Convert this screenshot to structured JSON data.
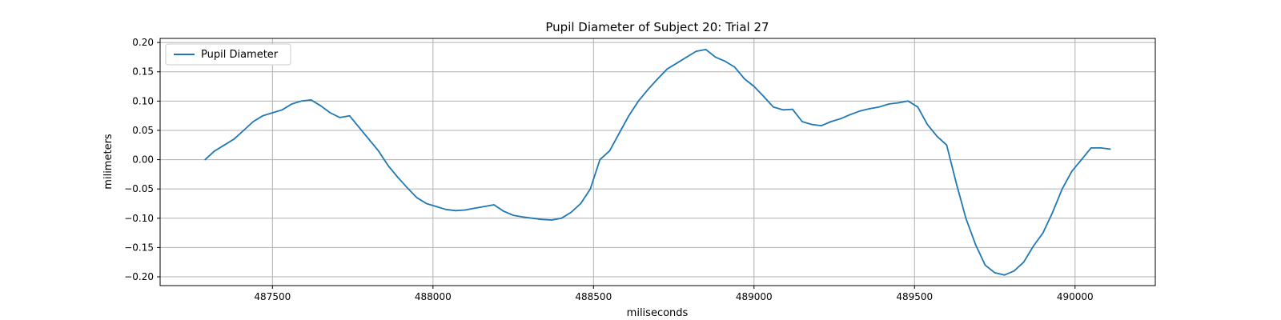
{
  "chart_data": {
    "type": "line",
    "title": "Pupil Diameter of Subject 20: Trial 27",
    "xlabel": "miliseconds",
    "ylabel": "milimeters",
    "xlim": [
      487150,
      490250
    ],
    "ylim": [
      -0.215,
      0.207
    ],
    "x_ticks": [
      487500,
      488000,
      488500,
      489000,
      489500,
      490000
    ],
    "x_tick_labels": [
      "487500",
      "488000",
      "488500",
      "489000",
      "489500",
      "490000"
    ],
    "y_ticks": [
      0.2,
      0.15,
      0.1,
      0.05,
      0.0,
      -0.05,
      -0.1,
      -0.15,
      -0.2
    ],
    "y_tick_labels": [
      "0.20",
      "0.15",
      "0.10",
      "0.05",
      "0.00",
      "−0.05",
      "−0.10",
      "−0.15",
      "−0.20"
    ],
    "grid": true,
    "legend": {
      "position": "upper-left"
    },
    "series": [
      {
        "name": "Pupil Diameter",
        "color": "#1f77b4",
        "x": [
          487290,
          487320,
          487350,
          487380,
          487410,
          487440,
          487470,
          487500,
          487530,
          487560,
          487590,
          487620,
          487650,
          487680,
          487710,
          487740,
          487770,
          487800,
          487830,
          487860,
          487890,
          487920,
          487950,
          487980,
          488010,
          488040,
          488070,
          488100,
          488130,
          488160,
          488190,
          488220,
          488250,
          488280,
          488310,
          488340,
          488370,
          488400,
          488430,
          488460,
          488490,
          488520,
          488550,
          488580,
          488610,
          488640,
          488670,
          488700,
          488730,
          488760,
          488790,
          488820,
          488850,
          488880,
          488910,
          488940,
          488970,
          489000,
          489030,
          489060,
          489090,
          489120,
          489150,
          489180,
          489210,
          489240,
          489270,
          489300,
          489330,
          489360,
          489390,
          489420,
          489450,
          489480,
          489510,
          489540,
          489570,
          489600,
          489630,
          489660,
          489690,
          489720,
          489750,
          489780,
          489810,
          489840,
          489870,
          489900,
          489930,
          489960,
          489990,
          490020,
          490050,
          490080,
          490110
        ],
        "values": [
          0.0,
          0.015,
          0.025,
          0.035,
          0.05,
          0.065,
          0.075,
          0.08,
          0.085,
          0.095,
          0.1,
          0.102,
          0.092,
          0.08,
          0.072,
          0.075,
          0.055,
          0.035,
          0.015,
          -0.01,
          -0.03,
          -0.048,
          -0.065,
          -0.075,
          -0.08,
          -0.085,
          -0.087,
          -0.086,
          -0.083,
          -0.08,
          -0.077,
          -0.088,
          -0.095,
          -0.098,
          -0.1,
          -0.102,
          -0.103,
          -0.1,
          -0.09,
          -0.075,
          -0.05,
          0.0,
          0.015,
          0.045,
          0.075,
          0.1,
          0.12,
          0.138,
          0.155,
          0.165,
          0.175,
          0.185,
          0.188,
          0.175,
          0.168,
          0.158,
          0.138,
          0.125,
          0.108,
          0.09,
          0.085,
          0.086,
          0.065,
          0.06,
          0.058,
          0.065,
          0.07,
          0.077,
          0.083,
          0.087,
          0.09,
          0.095,
          0.097,
          0.1,
          0.09,
          0.06,
          0.04,
          0.025,
          -0.04,
          -0.1,
          -0.145,
          -0.18,
          -0.193,
          -0.197,
          -0.19,
          -0.175,
          -0.148,
          -0.125,
          -0.09,
          -0.05,
          -0.02,
          0.0,
          0.02,
          0.02,
          0.018
        ]
      }
    ]
  }
}
